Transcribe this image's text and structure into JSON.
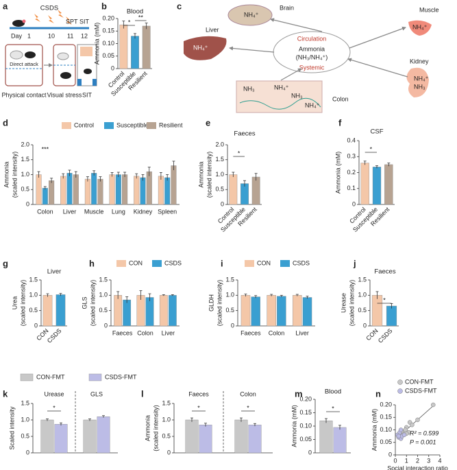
{
  "diagrams": {
    "a": {
      "panel": "a",
      "title": "CSDS",
      "day_label": "Day",
      "days": [
        "1",
        "10",
        "11",
        "12"
      ],
      "tests": [
        "SPT",
        "SIT"
      ],
      "box_text": "Direct attack",
      "captions": [
        "Physical contact",
        "Visual stress",
        "SIT"
      ]
    },
    "c": {
      "panel": "c",
      "organs": [
        "Liver",
        "Brain",
        "Muscle",
        "Kidney",
        "Colon"
      ],
      "circulation": [
        "Circulation",
        "Ammonia",
        "(NH₃/NH₄⁺)",
        "Systemic"
      ],
      "ions": {
        "brain": "NH₄⁺",
        "muscle": "NH₄⁺",
        "liver": "NH₄⁺",
        "kidney": [
          "NH₄⁺",
          "NH₃"
        ],
        "colon": [
          "NH₃",
          "NH₄⁺",
          "NH₃",
          "NH₄⁺"
        ]
      }
    }
  },
  "legend_fmt": [
    {
      "name": "CON-FMT",
      "color": "#c8c8c8"
    },
    {
      "name": "CSDS-FMT",
      "color": "#bcbce6"
    }
  ],
  "chart_data": [
    {
      "panel": "b",
      "type": "bar",
      "title": "Blood",
      "ylabel": [
        "Ammonia (mM)"
      ],
      "categories": [
        "Control",
        "Susceptible",
        "Resilient"
      ],
      "values": [
        0.175,
        0.13,
        0.17
      ],
      "errors": [
        0.015,
        0.01,
        0.012
      ],
      "colors": [
        "#f4c7a8",
        "#3a9fd1",
        "#b7a392"
      ],
      "ylim": [
        0,
        0.2
      ],
      "yticks": [
        0,
        0.05,
        {
          "value": 0.1,
          "label": "0.10"
        },
        0.15,
        {
          "value": 0.2,
          "label": "0.20"
        }
      ],
      "annotations": [
        "*",
        "**"
      ]
    },
    {
      "panel": "d",
      "type": "bar",
      "ylabel": [
        "Ammonia",
        "(scaled intensity)"
      ],
      "categories": [
        "Colon",
        "Liver",
        "Muscle",
        "Lung",
        "Kidney",
        "Spleen"
      ],
      "series": [
        {
          "name": "Control",
          "color": "#f4c7a8",
          "values": [
            1.0,
            0.95,
            0.85,
            1.0,
            0.95,
            0.95
          ],
          "errors": [
            0.1,
            0.08,
            0.08,
            0.07,
            0.08,
            0.12
          ]
        },
        {
          "name": "Susceptible",
          "color": "#3a9fd1",
          "values": [
            0.55,
            1.05,
            1.05,
            1.0,
            0.9,
            0.9
          ],
          "errors": [
            0.05,
            0.1,
            0.08,
            0.08,
            0.1,
            0.1
          ]
        },
        {
          "name": "Resilient",
          "color": "#b7a392",
          "values": [
            0.8,
            1.0,
            0.85,
            1.0,
            1.1,
            1.3
          ],
          "errors": [
            0.08,
            0.1,
            0.08,
            0.08,
            0.15,
            0.15
          ]
        }
      ],
      "ylim": [
        0,
        2
      ],
      "yticks": [
        0,
        0.5,
        {
          "value": 1,
          "label": "1.0"
        },
        1.5,
        {
          "value": 2,
          "label": "2.0"
        }
      ],
      "annotations": [
        "***"
      ]
    },
    {
      "panel": "e",
      "type": "bar",
      "title": "Faeces",
      "ylabel": [
        "Ammonia",
        "(scaled intensity)"
      ],
      "categories": [
        "Control",
        "Susceptible",
        "Resilient"
      ],
      "values": [
        1.0,
        0.7,
        0.92
      ],
      "errors": [
        0.08,
        0.1,
        0.12
      ],
      "colors": [
        "#f4c7a8",
        "#3a9fd1",
        "#b7a392"
      ],
      "ylim": [
        0,
        2
      ],
      "yticks": [
        0,
        0.5,
        {
          "value": 1,
          "label": "1.0"
        },
        1.5,
        {
          "value": 2,
          "label": "2.0"
        }
      ],
      "annotations": [
        "*"
      ]
    },
    {
      "panel": "f",
      "type": "bar",
      "title": "CSF",
      "ylabel": [
        "Ammonia (mM)"
      ],
      "categories": [
        "Control",
        "Susceptible",
        "Resilient"
      ],
      "values": [
        0.26,
        0.235,
        0.25
      ],
      "errors": [
        0.012,
        0.008,
        0.01
      ],
      "colors": [
        "#f4c7a8",
        "#3a9fd1",
        "#b7a392"
      ],
      "ylim": [
        0,
        0.4
      ],
      "yticks": [
        0,
        0.1,
        0.2,
        0.3,
        0.4
      ],
      "annotations": [
        "*"
      ]
    },
    {
      "panel": "g",
      "type": "bar",
      "title": "Liver",
      "ylabel": [
        "Urea",
        "(scaled intensity)"
      ],
      "categories": [
        "CON",
        "CSDS"
      ],
      "values": [
        1.0,
        1.02
      ],
      "errors": [
        0.05,
        0.04
      ],
      "colors": [
        "#f4c7a8",
        "#3a9fd1"
      ],
      "ylim": [
        0,
        1.5
      ],
      "yticks": [
        0,
        0.5,
        {
          "value": 1,
          "label": "1.0"
        },
        1.5
      ]
    },
    {
      "panel": "h",
      "type": "bar",
      "ylabel": [
        "GLS",
        "(scaled intensity)"
      ],
      "categories": [
        "Faeces",
        "Colon",
        "Liver"
      ],
      "series": [
        {
          "name": "CON",
          "color": "#f4c7a8",
          "values": [
            1.0,
            1.0,
            1.0
          ],
          "errors": [
            0.12,
            0.15,
            0.02
          ]
        },
        {
          "name": "CSDS",
          "color": "#3a9fd1",
          "values": [
            0.85,
            0.93,
            1.0
          ],
          "errors": [
            0.1,
            0.12,
            0.02
          ]
        }
      ],
      "ylim": [
        0,
        1.5
      ],
      "yticks": [
        0,
        0.5,
        {
          "value": 1,
          "label": "1.0"
        },
        1.5
      ]
    },
    {
      "panel": "i",
      "type": "bar",
      "ylabel": [
        "GLDH",
        "(scaled intensity)"
      ],
      "categories": [
        "Faeces",
        "Colon",
        "Liver"
      ],
      "series": [
        {
          "name": "CON",
          "color": "#f4c7a8",
          "values": [
            1.0,
            1.0,
            1.0
          ],
          "errors": [
            0.04,
            0.03,
            0.03
          ]
        },
        {
          "name": "CSDS",
          "color": "#3a9fd1",
          "values": [
            0.95,
            0.97,
            0.93
          ],
          "errors": [
            0.04,
            0.03,
            0.04
          ]
        }
      ],
      "ylim": [
        0,
        1.5
      ],
      "yticks": [
        0,
        0.5,
        {
          "value": 1,
          "label": "1.0"
        },
        1.5
      ]
    },
    {
      "panel": "j",
      "type": "bar",
      "title": "Faeces",
      "ylabel": [
        "Urease",
        "(scaled intensity)"
      ],
      "categories": [
        "CON",
        "CSDS"
      ],
      "values": [
        1.0,
        0.65
      ],
      "errors": [
        0.12,
        0.08
      ],
      "colors": [
        "#f4c7a8",
        "#3a9fd1"
      ],
      "ylim": [
        0,
        1.5
      ],
      "yticks": [
        0,
        0.5,
        {
          "value": 1,
          "label": "1.0"
        },
        1.5
      ],
      "annotations": [
        "*"
      ]
    },
    {
      "panel": "k",
      "type": "bar",
      "ylabel": [
        "Scaled intensity"
      ],
      "categories": [
        "Urease",
        "GLS"
      ],
      "series": [
        {
          "color": "#c8c8c8",
          "values": [
            1.0,
            1.0
          ],
          "errors": [
            0.03,
            0.03
          ]
        },
        {
          "color": "#bcbce6",
          "values": [
            0.87,
            1.1
          ],
          "errors": [
            0.04,
            0.03
          ]
        }
      ],
      "ylim": [
        0,
        1.5
      ],
      "yticks": [
        0,
        0.5,
        {
          "value": 1,
          "label": "1.0"
        },
        1.5
      ],
      "annotations": [
        "*"
      ]
    },
    {
      "panel": "l",
      "type": "bar",
      "ylabel": [
        "Ammonia",
        "(scaled intensity)"
      ],
      "categories": [
        "Faeces",
        "Colon"
      ],
      "series": [
        {
          "color": "#c8c8c8",
          "values": [
            1.0,
            1.0
          ],
          "errors": [
            0.06,
            0.06
          ]
        },
        {
          "color": "#bcbce6",
          "values": [
            0.85,
            0.85
          ],
          "errors": [
            0.05,
            0.04
          ]
        }
      ],
      "ylim": [
        0,
        1.5
      ],
      "yticks": [
        0,
        0.5,
        {
          "value": 1,
          "label": "1.0"
        },
        1.5
      ],
      "annotations": [
        "*",
        "*"
      ]
    },
    {
      "panel": "m",
      "type": "bar",
      "title": "Blood",
      "ylabel": [
        "Ammonia (mM)"
      ],
      "categories": [
        null
      ],
      "series": [
        {
          "color": "#c8c8c8",
          "values": [
            0.12
          ],
          "errors": [
            0.008
          ]
        },
        {
          "color": "#bcbce6",
          "values": [
            0.095
          ],
          "errors": [
            0.008
          ]
        }
      ],
      "ylim": [
        0,
        0.2
      ],
      "yticks": [
        0,
        0.05,
        {
          "value": 0.1,
          "label": "0.10"
        },
        0.15,
        {
          "value": 0.2,
          "label": "0.20"
        }
      ],
      "annotations": [
        "*"
      ]
    },
    {
      "panel": "n",
      "type": "scatter",
      "xlabel": "Social interaction ratio",
      "ylabel": [
        "Ammonia (mM)"
      ],
      "series": [
        {
          "name": "CON-FMT",
          "color": "#c8c8c8",
          "x": [
            1.0,
            1.3,
            1.5,
            2.0,
            3.4,
            1.2,
            0.9,
            0.6,
            0.7,
            1.0
          ],
          "values": [
            0.11,
            0.13,
            0.12,
            0.14,
            0.2,
            0.09,
            0.1,
            0.09,
            0.08,
            0.085
          ]
        },
        {
          "name": "CSDS-FMT",
          "color": "#bcbce6",
          "x": [
            0.2,
            0.3,
            0.5,
            0.4,
            0.6,
            0.8,
            0.5,
            0.3
          ],
          "values": [
            0.08,
            0.07,
            0.065,
            0.09,
            0.075,
            0.08,
            0.1,
            0.075
          ]
        }
      ],
      "xlim": [
        0,
        4
      ],
      "xticks": [
        0,
        1,
        2,
        3,
        4
      ],
      "ylim": [
        0,
        0.2
      ],
      "yticks": [
        0,
        0.05,
        {
          "value": 0.1,
          "label": "0.10"
        },
        0.15,
        {
          "value": 0.2,
          "label": "0.20"
        }
      ],
      "annotations": [
        "R² = 0.599",
        "P = 0.001"
      ]
    }
  ]
}
